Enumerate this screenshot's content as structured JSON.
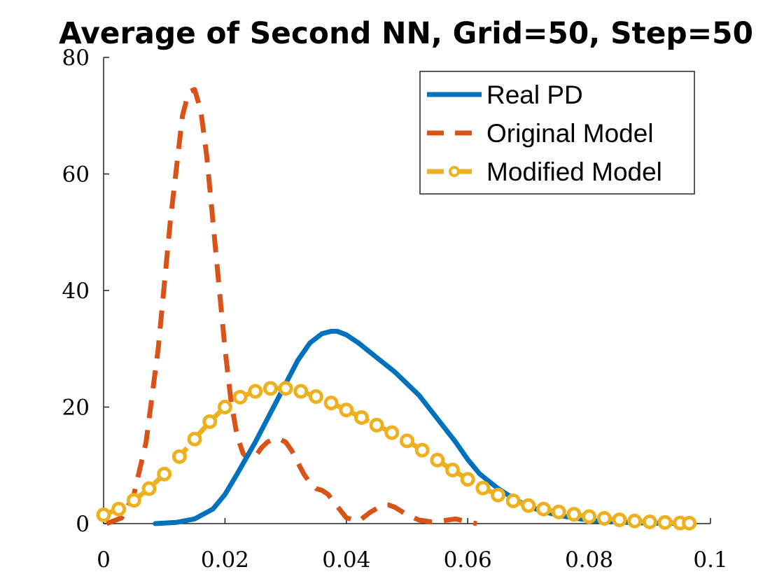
{
  "chart_data": {
    "type": "line",
    "title": "Average of Second NN, Grid=50, Step=50",
    "xlabel": "",
    "ylabel": "",
    "xlim": [
      0,
      0.1
    ],
    "ylim": [
      0,
      80
    ],
    "xticks": [
      0,
      0.02,
      0.04,
      0.06,
      0.08,
      0.1
    ],
    "xtick_labels": [
      "0",
      "0.02",
      "0.04",
      "0.06",
      "0.08",
      "0.1"
    ],
    "yticks": [
      0,
      20,
      40,
      60,
      80
    ],
    "ytick_labels": [
      "0",
      "20",
      "40",
      "60",
      "80"
    ],
    "grid": false,
    "legend_position": "top-right",
    "series": [
      {
        "name": "Real PD",
        "color": "#0072bd",
        "style": "solid",
        "marker": "none",
        "x": [
          0.0085,
          0.012,
          0.015,
          0.018,
          0.02,
          0.022,
          0.025,
          0.028,
          0.03,
          0.032,
          0.034,
          0.036,
          0.0375,
          0.0385,
          0.04,
          0.042,
          0.045,
          0.048,
          0.05,
          0.052,
          0.055,
          0.058,
          0.06,
          0.062,
          0.065,
          0.068,
          0.07,
          0.072,
          0.075,
          0.078,
          0.08,
          0.082,
          0.085,
          0.088,
          0.09,
          0.092,
          0.095,
          0.0965
        ],
        "y": [
          0,
          0.2,
          0.8,
          2.5,
          5,
          8.5,
          14,
          20,
          24,
          28,
          31,
          32.6,
          33,
          33,
          32.4,
          31,
          28.5,
          26,
          24,
          22,
          18,
          14,
          11,
          8.5,
          6,
          4,
          3,
          2.2,
          1.4,
          0.9,
          0.6,
          0.4,
          0.25,
          0.15,
          0.1,
          0.06,
          0.03,
          0.02
        ]
      },
      {
        "name": "Original Model",
        "color": "#d95319",
        "style": "dashed",
        "marker": "none",
        "x": [
          0.0005,
          0.003,
          0.005,
          0.007,
          0.009,
          0.011,
          0.013,
          0.014,
          0.015,
          0.016,
          0.017,
          0.018,
          0.019,
          0.02,
          0.021,
          0.022,
          0.023,
          0.024,
          0.025,
          0.026,
          0.027,
          0.028,
          0.029,
          0.03,
          0.031,
          0.032,
          0.033,
          0.034,
          0.035,
          0.036,
          0.037,
          0.038,
          0.04,
          0.042,
          0.044,
          0.046,
          0.047,
          0.048,
          0.05,
          0.052,
          0.054,
          0.056,
          0.058,
          0.06,
          0.0615
        ],
        "y": [
          0,
          1,
          5,
          14,
          30,
          52,
          70,
          74,
          74.5,
          71,
          63,
          52,
          41,
          30,
          21,
          15,
          12,
          11,
          11.5,
          13,
          14,
          14.5,
          14.5,
          14,
          12.5,
          10.5,
          8.5,
          7,
          6,
          5.7,
          5,
          3.6,
          1,
          0.4,
          2,
          3.2,
          3.2,
          2.8,
          1.5,
          0.6,
          0.3,
          0.5,
          0.8,
          0.3,
          0
        ]
      },
      {
        "name": "Modified Model",
        "color": "#edb120",
        "style": "dashed",
        "marker": "circle",
        "x": [
          0,
          0.0025,
          0.005,
          0.0075,
          0.01,
          0.0125,
          0.015,
          0.0175,
          0.02,
          0.0225,
          0.025,
          0.0275,
          0.03,
          0.0325,
          0.035,
          0.0375,
          0.04,
          0.0425,
          0.045,
          0.0475,
          0.05,
          0.0525,
          0.055,
          0.0575,
          0.06,
          0.0625,
          0.065,
          0.0675,
          0.07,
          0.0725,
          0.075,
          0.0775,
          0.08,
          0.0825,
          0.085,
          0.0875,
          0.09,
          0.0925,
          0.095,
          0.0965
        ],
        "y": [
          1.5,
          2.5,
          4,
          6,
          8.5,
          11.5,
          14.5,
          17.5,
          20,
          21.7,
          22.7,
          23.2,
          23.2,
          22.7,
          21.8,
          20.7,
          19.5,
          18.2,
          16.9,
          15.6,
          14.2,
          12.6,
          10.9,
          9.2,
          7.6,
          6.1,
          4.9,
          3.9,
          3.1,
          2.5,
          2,
          1.6,
          1.2,
          0.9,
          0.65,
          0.45,
          0.3,
          0.2,
          0.1,
          0.08
        ]
      }
    ]
  }
}
